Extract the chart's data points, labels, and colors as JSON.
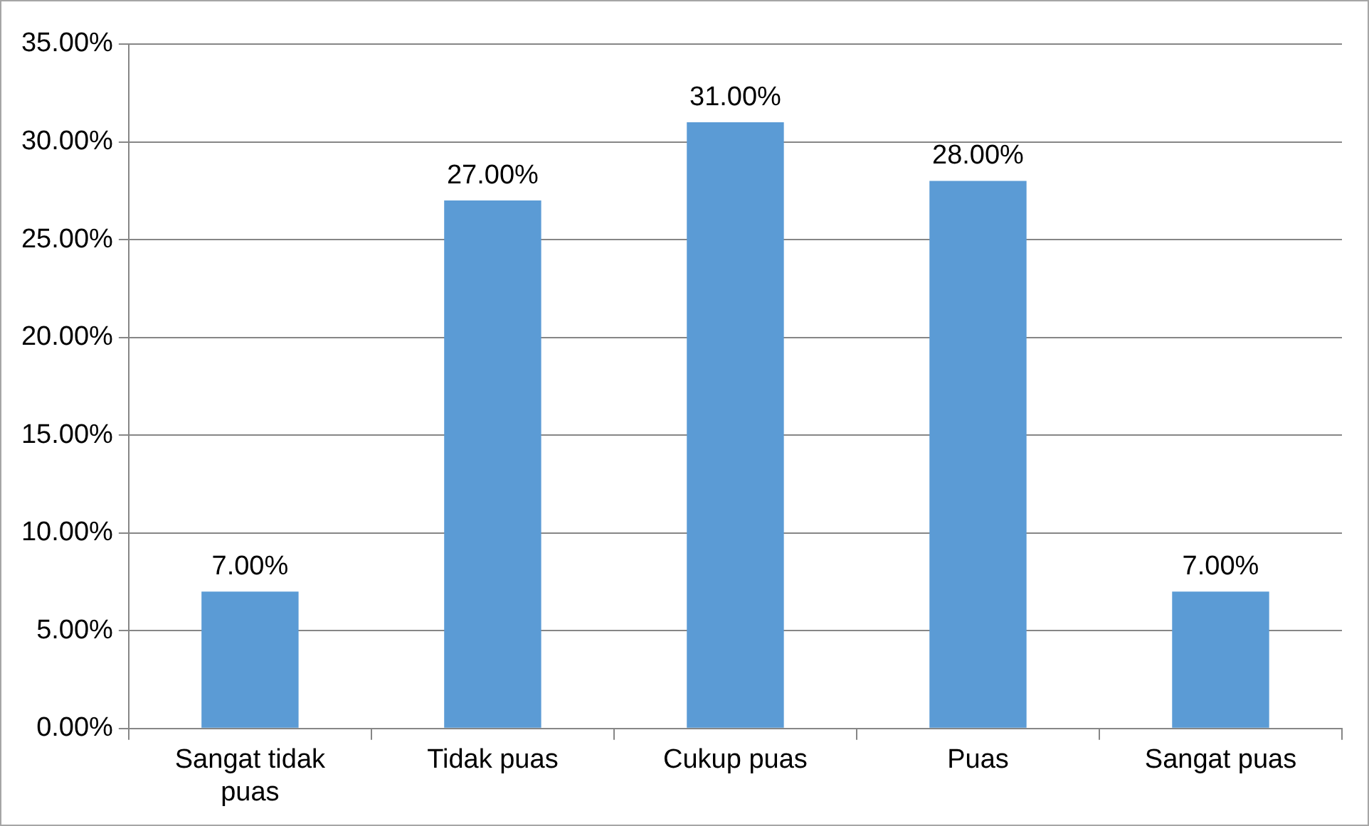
{
  "chart_data": {
    "type": "bar",
    "categories": [
      "Sangat tidak puas",
      "Tidak puas",
      "Cukup puas",
      "Puas",
      "Sangat puas"
    ],
    "values": [
      7,
      27,
      31,
      28,
      7
    ],
    "color": "#5b9bd5",
    "value_labels": [
      "7.00%",
      "27.00%",
      "31.00%",
      "28.00%",
      "7.00%"
    ],
    "ylim": [
      0,
      35
    ],
    "yticks": [
      {
        "value": 0,
        "label": "0.00%"
      },
      {
        "value": 5,
        "label": "5.00%"
      },
      {
        "value": 10,
        "label": "10.00%"
      },
      {
        "value": 15,
        "label": "15.00%"
      },
      {
        "value": 20,
        "label": "20.00%"
      },
      {
        "value": 25,
        "label": "25.00%"
      },
      {
        "value": 30,
        "label": "30.00%"
      },
      {
        "value": 35,
        "label": "35.00%"
      }
    ],
    "grid": "y",
    "legend": false
  }
}
